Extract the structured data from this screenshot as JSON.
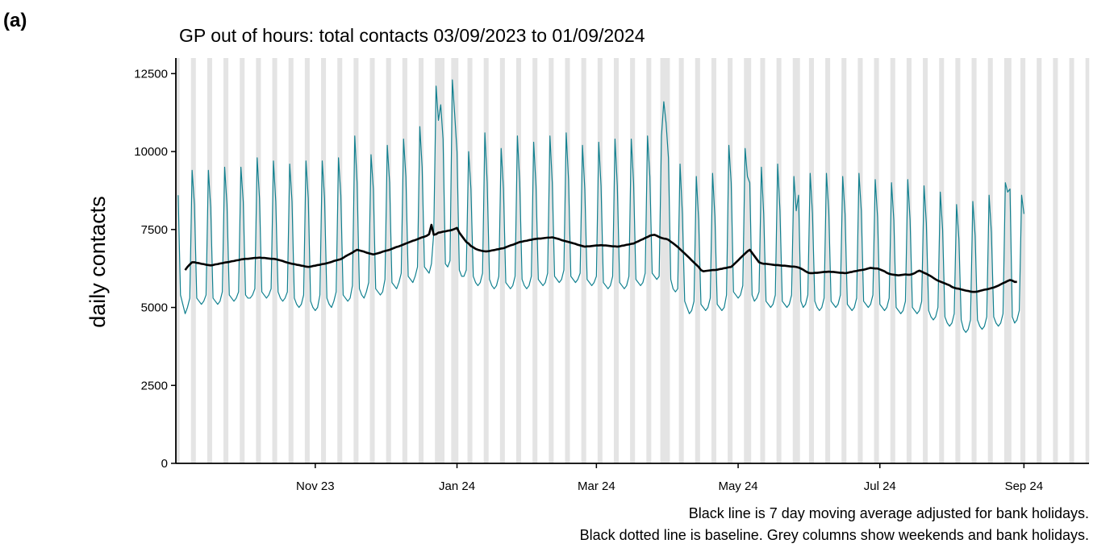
{
  "label": "(a)",
  "chart_data": {
    "type": "line",
    "title": "GP out of hours: total contacts 03/09/2023 to 01/09/2024",
    "y_label": "daily contacts",
    "notes": [
      "Black line is 7 day moving average adjusted for bank holidays.",
      "Black dotted line is baseline. Grey columns show weekends and bank holidays."
    ],
    "x": [
      0,
      1,
      2,
      3,
      4,
      5,
      6,
      7,
      8,
      9,
      10,
      11,
      12,
      13,
      14,
      15,
      16,
      17,
      18,
      19,
      20,
      21,
      22,
      23,
      24,
      25,
      26,
      27,
      28,
      29,
      30,
      31,
      32,
      33,
      34,
      35,
      36,
      37,
      38,
      39,
      40,
      41,
      42,
      43,
      44,
      45,
      46,
      47,
      48,
      49,
      50,
      51,
      52,
      53,
      54,
      55,
      56,
      57,
      58,
      59,
      60,
      61,
      62,
      63,
      64,
      65,
      66,
      67,
      68,
      69,
      70,
      71,
      72,
      73,
      74,
      75,
      76,
      77,
      78,
      79,
      80,
      81,
      82,
      83,
      84,
      85,
      86,
      87,
      88,
      89,
      90,
      91,
      92,
      93,
      94,
      95,
      96,
      97,
      98,
      99,
      100,
      101,
      102,
      103,
      104,
      105,
      106,
      107,
      108,
      109,
      110,
      111,
      112,
      113,
      114,
      115,
      116,
      117,
      118,
      119,
      120,
      121,
      122,
      123,
      124,
      125,
      126,
      127,
      128,
      129,
      130,
      131,
      132,
      133,
      134,
      135,
      136,
      137,
      138,
      139,
      140,
      141,
      142,
      143,
      144,
      145,
      146,
      147,
      148,
      149,
      150,
      151,
      152,
      153,
      154,
      155,
      156,
      157,
      158,
      159,
      160,
      161,
      162,
      163,
      164,
      165,
      166,
      167,
      168,
      169,
      170,
      171,
      172,
      173,
      174,
      175,
      176,
      177,
      178,
      179,
      180,
      181,
      182,
      183,
      184,
      185,
      186,
      187,
      188,
      189,
      190,
      191,
      192,
      193,
      194,
      195,
      196,
      197,
      198,
      199,
      200,
      201,
      202,
      203,
      204,
      205,
      206,
      207,
      208,
      209,
      210,
      211,
      212,
      213,
      214,
      215,
      216,
      217,
      218,
      219,
      220,
      221,
      222,
      223,
      224,
      225,
      226,
      227,
      228,
      229,
      230,
      231,
      232,
      233,
      234,
      235,
      236,
      237,
      238,
      239,
      240,
      241,
      242,
      243,
      244,
      245,
      246,
      247,
      248,
      249,
      250,
      251,
      252,
      253,
      254,
      255,
      256,
      257,
      258,
      259,
      260,
      261,
      262,
      263,
      264,
      265,
      266,
      267,
      268,
      269,
      270,
      271,
      272,
      273,
      274,
      275,
      276,
      277,
      278,
      279,
      280,
      281,
      282,
      283,
      284,
      285,
      286,
      287,
      288,
      289,
      290,
      291,
      292,
      293,
      294,
      295,
      296,
      297,
      298,
      299,
      300,
      301,
      302,
      303,
      304,
      305,
      306,
      307,
      308,
      309,
      310,
      311,
      312,
      313,
      314,
      315,
      316,
      317,
      318,
      319,
      320,
      321,
      322,
      323,
      324,
      325,
      326,
      327,
      328,
      329,
      330,
      331,
      332,
      333,
      334,
      335,
      336,
      337,
      338,
      339,
      340,
      341,
      342,
      343,
      344,
      345,
      346,
      347,
      348,
      349,
      350,
      351,
      352,
      353,
      354,
      355,
      356,
      357,
      358,
      359,
      360,
      361,
      362,
      363,
      364
    ],
    "xlim": [
      -1,
      392
    ],
    "xticks": [
      {
        "value": 59,
        "label": "Nov 23"
      },
      {
        "value": 120,
        "label": "Jan 24"
      },
      {
        "value": 180,
        "label": "Mar 24"
      },
      {
        "value": 241,
        "label": "May 24"
      },
      {
        "value": 302,
        "label": "Jul 24"
      },
      {
        "value": 364,
        "label": "Sep 24"
      }
    ],
    "ylim": [
      0,
      13000
    ],
    "yticks": [
      0,
      2500,
      5000,
      7500,
      10000,
      12500
    ],
    "series": [
      {
        "color": "#11808f",
        "values": [
          8600,
          5400,
          5100,
          4800,
          5000,
          5300,
          9400,
          8300,
          5300,
          5200,
          5100,
          5200,
          5400,
          9400,
          8200,
          5300,
          5200,
          5100,
          5200,
          5500,
          9500,
          8300,
          5400,
          5300,
          5200,
          5300,
          5500,
          9500,
          8400,
          5400,
          5300,
          5300,
          5400,
          5600,
          9800,
          8500,
          5500,
          5400,
          5300,
          5400,
          5600,
          9700,
          8400,
          5500,
          5300,
          5200,
          5300,
          5500,
          9600,
          8400,
          5300,
          5100,
          5000,
          5100,
          5400,
          9700,
          8500,
          5200,
          5000,
          4900,
          5000,
          5400,
          9700,
          8500,
          5300,
          5100,
          5000,
          5200,
          5500,
          9800,
          8600,
          5400,
          5300,
          5200,
          5300,
          5700,
          10500,
          9000,
          5600,
          5400,
          5300,
          5500,
          5800,
          9900,
          8800,
          5600,
          5500,
          5400,
          5500,
          5900,
          10200,
          9000,
          5800,
          5700,
          5600,
          5800,
          6100,
          10400,
          9200,
          6000,
          5900,
          5800,
          6000,
          6300,
          10800,
          9500,
          6300,
          6200,
          6100,
          6400,
          7400,
          12100,
          11000,
          11500,
          10400,
          6400,
          6300,
          6500,
          12300,
          11200,
          10000,
          6200,
          6000,
          6000,
          6200,
          10000,
          8800,
          6000,
          5800,
          5700,
          5800,
          6100,
          10600,
          9000,
          5900,
          5700,
          5600,
          5700,
          6000,
          10100,
          8800,
          5800,
          5700,
          5600,
          5700,
          6000,
          10500,
          9000,
          5900,
          5700,
          5600,
          5700,
          6000,
          10300,
          8900,
          5900,
          5800,
          5700,
          5800,
          6100,
          10500,
          9000,
          6000,
          5900,
          5800,
          5900,
          6200,
          10600,
          9100,
          6000,
          5900,
          5800,
          5900,
          6100,
          10200,
          8800,
          5900,
          5800,
          5700,
          5800,
          6000,
          10300,
          8900,
          5800,
          5700,
          5600,
          5700,
          6000,
          10400,
          8900,
          5800,
          5700,
          5600,
          5700,
          6000,
          10400,
          9000,
          5900,
          5800,
          5700,
          5800,
          6100,
          10500,
          9200,
          6100,
          6000,
          5900,
          6000,
          10500,
          11600,
          10900,
          9800,
          5900,
          5600,
          5500,
          5600,
          9600,
          8000,
          5200,
          5000,
          4800,
          4900,
          5200,
          9200,
          7800,
          5100,
          5000,
          4900,
          5000,
          5300,
          9300,
          7900,
          5100,
          5000,
          4900,
          5000,
          5400,
          10200,
          9000,
          5500,
          5400,
          5300,
          5400,
          5700,
          10100,
          9200,
          9000,
          5400,
          5200,
          5300,
          5500,
          9500,
          8000,
          5200,
          5100,
          5000,
          5100,
          5400,
          9600,
          8100,
          5200,
          5100,
          5000,
          5100,
          5400,
          9200,
          8100,
          8600,
          5200,
          5000,
          5100,
          5400,
          9300,
          8000,
          5200,
          5000,
          4900,
          5000,
          5300,
          9300,
          8100,
          5200,
          5100,
          5000,
          5100,
          5400,
          9200,
          8000,
          5100,
          5000,
          4900,
          5000,
          5300,
          9300,
          8100,
          5200,
          5100,
          5000,
          5100,
          5400,
          9100,
          7900,
          5100,
          5000,
          4900,
          5000,
          5300,
          9000,
          7800,
          5000,
          4900,
          4800,
          4900,
          5200,
          9100,
          7800,
          5000,
          4900,
          4800,
          4900,
          5200,
          8900,
          7700,
          4900,
          4700,
          4600,
          4700,
          5000,
          8700,
          7500,
          4700,
          4500,
          4400,
          4500,
          4800,
          8300,
          7200,
          4600,
          4300,
          4200,
          4300,
          4600,
          8400,
          7300,
          4600,
          4400,
          4300,
          4400,
          4700,
          8600,
          7400,
          4700,
          4500,
          4400,
          4500,
          4800,
          9000,
          8700,
          8800,
          4700,
          4500,
          4600,
          4900,
          8600,
          8000
        ]
      },
      {
        "color": "#000000",
        "values": [
          null,
          null,
          null,
          6200,
          6300,
          6380,
          6450,
          6450,
          6430,
          6420,
          6400,
          6390,
          6370,
          6360,
          6350,
          6360,
          6380,
          6390,
          6410,
          6420,
          6440,
          6450,
          6460,
          6480,
          6490,
          6510,
          6520,
          6540,
          6550,
          6560,
          6560,
          6570,
          6580,
          6590,
          6590,
          6600,
          6590,
          6590,
          6580,
          6570,
          6560,
          6560,
          6550,
          6530,
          6510,
          6490,
          6460,
          6440,
          6420,
          6400,
          6390,
          6370,
          6360,
          6340,
          6330,
          6310,
          6300,
          6310,
          6330,
          6340,
          6360,
          6370,
          6390,
          6400,
          6420,
          6440,
          6460,
          6490,
          6510,
          6530,
          6550,
          6590,
          6640,
          6680,
          6720,
          6760,
          6810,
          6850,
          6830,
          6810,
          6790,
          6760,
          6740,
          6720,
          6700,
          6720,
          6740,
          6760,
          6790,
          6810,
          6830,
          6850,
          6880,
          6910,
          6940,
          6960,
          6990,
          7020,
          7050,
          7080,
          7110,
          7140,
          7160,
          7190,
          7220,
          7250,
          7270,
          7300,
          7350,
          7650,
          7330,
          7350,
          7400,
          7410,
          7430,
          7440,
          7460,
          7470,
          7490,
          7520,
          7550,
          7400,
          7300,
          7200,
          7100,
          7050,
          6970,
          6930,
          6880,
          6850,
          6830,
          6810,
          6800,
          6800,
          6810,
          6830,
          6840,
          6860,
          6870,
          6890,
          6900,
          6930,
          6960,
          6990,
          7010,
          7040,
          7070,
          7100,
          7110,
          7130,
          7140,
          7160,
          7170,
          7190,
          7200,
          7210,
          7210,
          7220,
          7230,
          7240,
          7240,
          7250,
          7230,
          7210,
          7190,
          7160,
          7140,
          7120,
          7100,
          7080,
          7060,
          7040,
          7010,
          6990,
          6970,
          6950,
          6960,
          6960,
          6970,
          6980,
          6990,
          6990,
          7000,
          6990,
          6990,
          6980,
          6970,
          6960,
          6960,
          6950,
          6960,
          6980,
          6990,
          7010,
          7020,
          7040,
          7050,
          7090,
          7120,
          7160,
          7190,
          7230,
          7260,
          7300,
          7320,
          7330,
          7300,
          7260,
          7230,
          7210,
          7200,
          7170,
          7110,
          7060,
          7000,
          6940,
          6870,
          6800,
          6730,
          6660,
          6590,
          6510,
          6440,
          6370,
          6300,
          6200,
          6160,
          6170,
          6180,
          6190,
          6200,
          6200,
          6210,
          6230,
          6240,
          6260,
          6270,
          6290,
          6300,
          6370,
          6440,
          6510,
          6590,
          6660,
          6730,
          6800,
          6850,
          6750,
          6650,
          6550,
          6450,
          6420,
          6400,
          6400,
          6390,
          6380,
          6370,
          6360,
          6360,
          6350,
          6340,
          6340,
          6330,
          6320,
          6310,
          6310,
          6300,
          6280,
          6250,
          6210,
          6160,
          6120,
          6100,
          6100,
          6110,
          6110,
          6120,
          6130,
          6140,
          6140,
          6150,
          6140,
          6140,
          6130,
          6120,
          6110,
          6110,
          6100,
          6110,
          6130,
          6140,
          6160,
          6170,
          6190,
          6200,
          6210,
          6230,
          6250,
          6270,
          6260,
          6250,
          6250,
          6220,
          6190,
          6160,
          6110,
          6080,
          6060,
          6050,
          6040,
          6030,
          6040,
          6050,
          6060,
          6050,
          6050,
          6070,
          6100,
          6150,
          6180,
          6150,
          6110,
          6080,
          6040,
          6000,
          5950,
          5900,
          5860,
          5830,
          5800,
          5770,
          5740,
          5710,
          5660,
          5630,
          5610,
          5600,
          5580,
          5560,
          5540,
          5530,
          5510,
          5500,
          5500,
          5510,
          5530,
          5550,
          5570,
          5580,
          5600,
          5620,
          5640,
          5670,
          5700,
          5740,
          5780,
          5810,
          5850,
          5880,
          5860,
          5820,
          5820,
          null,
          null,
          null
        ]
      }
    ]
  }
}
